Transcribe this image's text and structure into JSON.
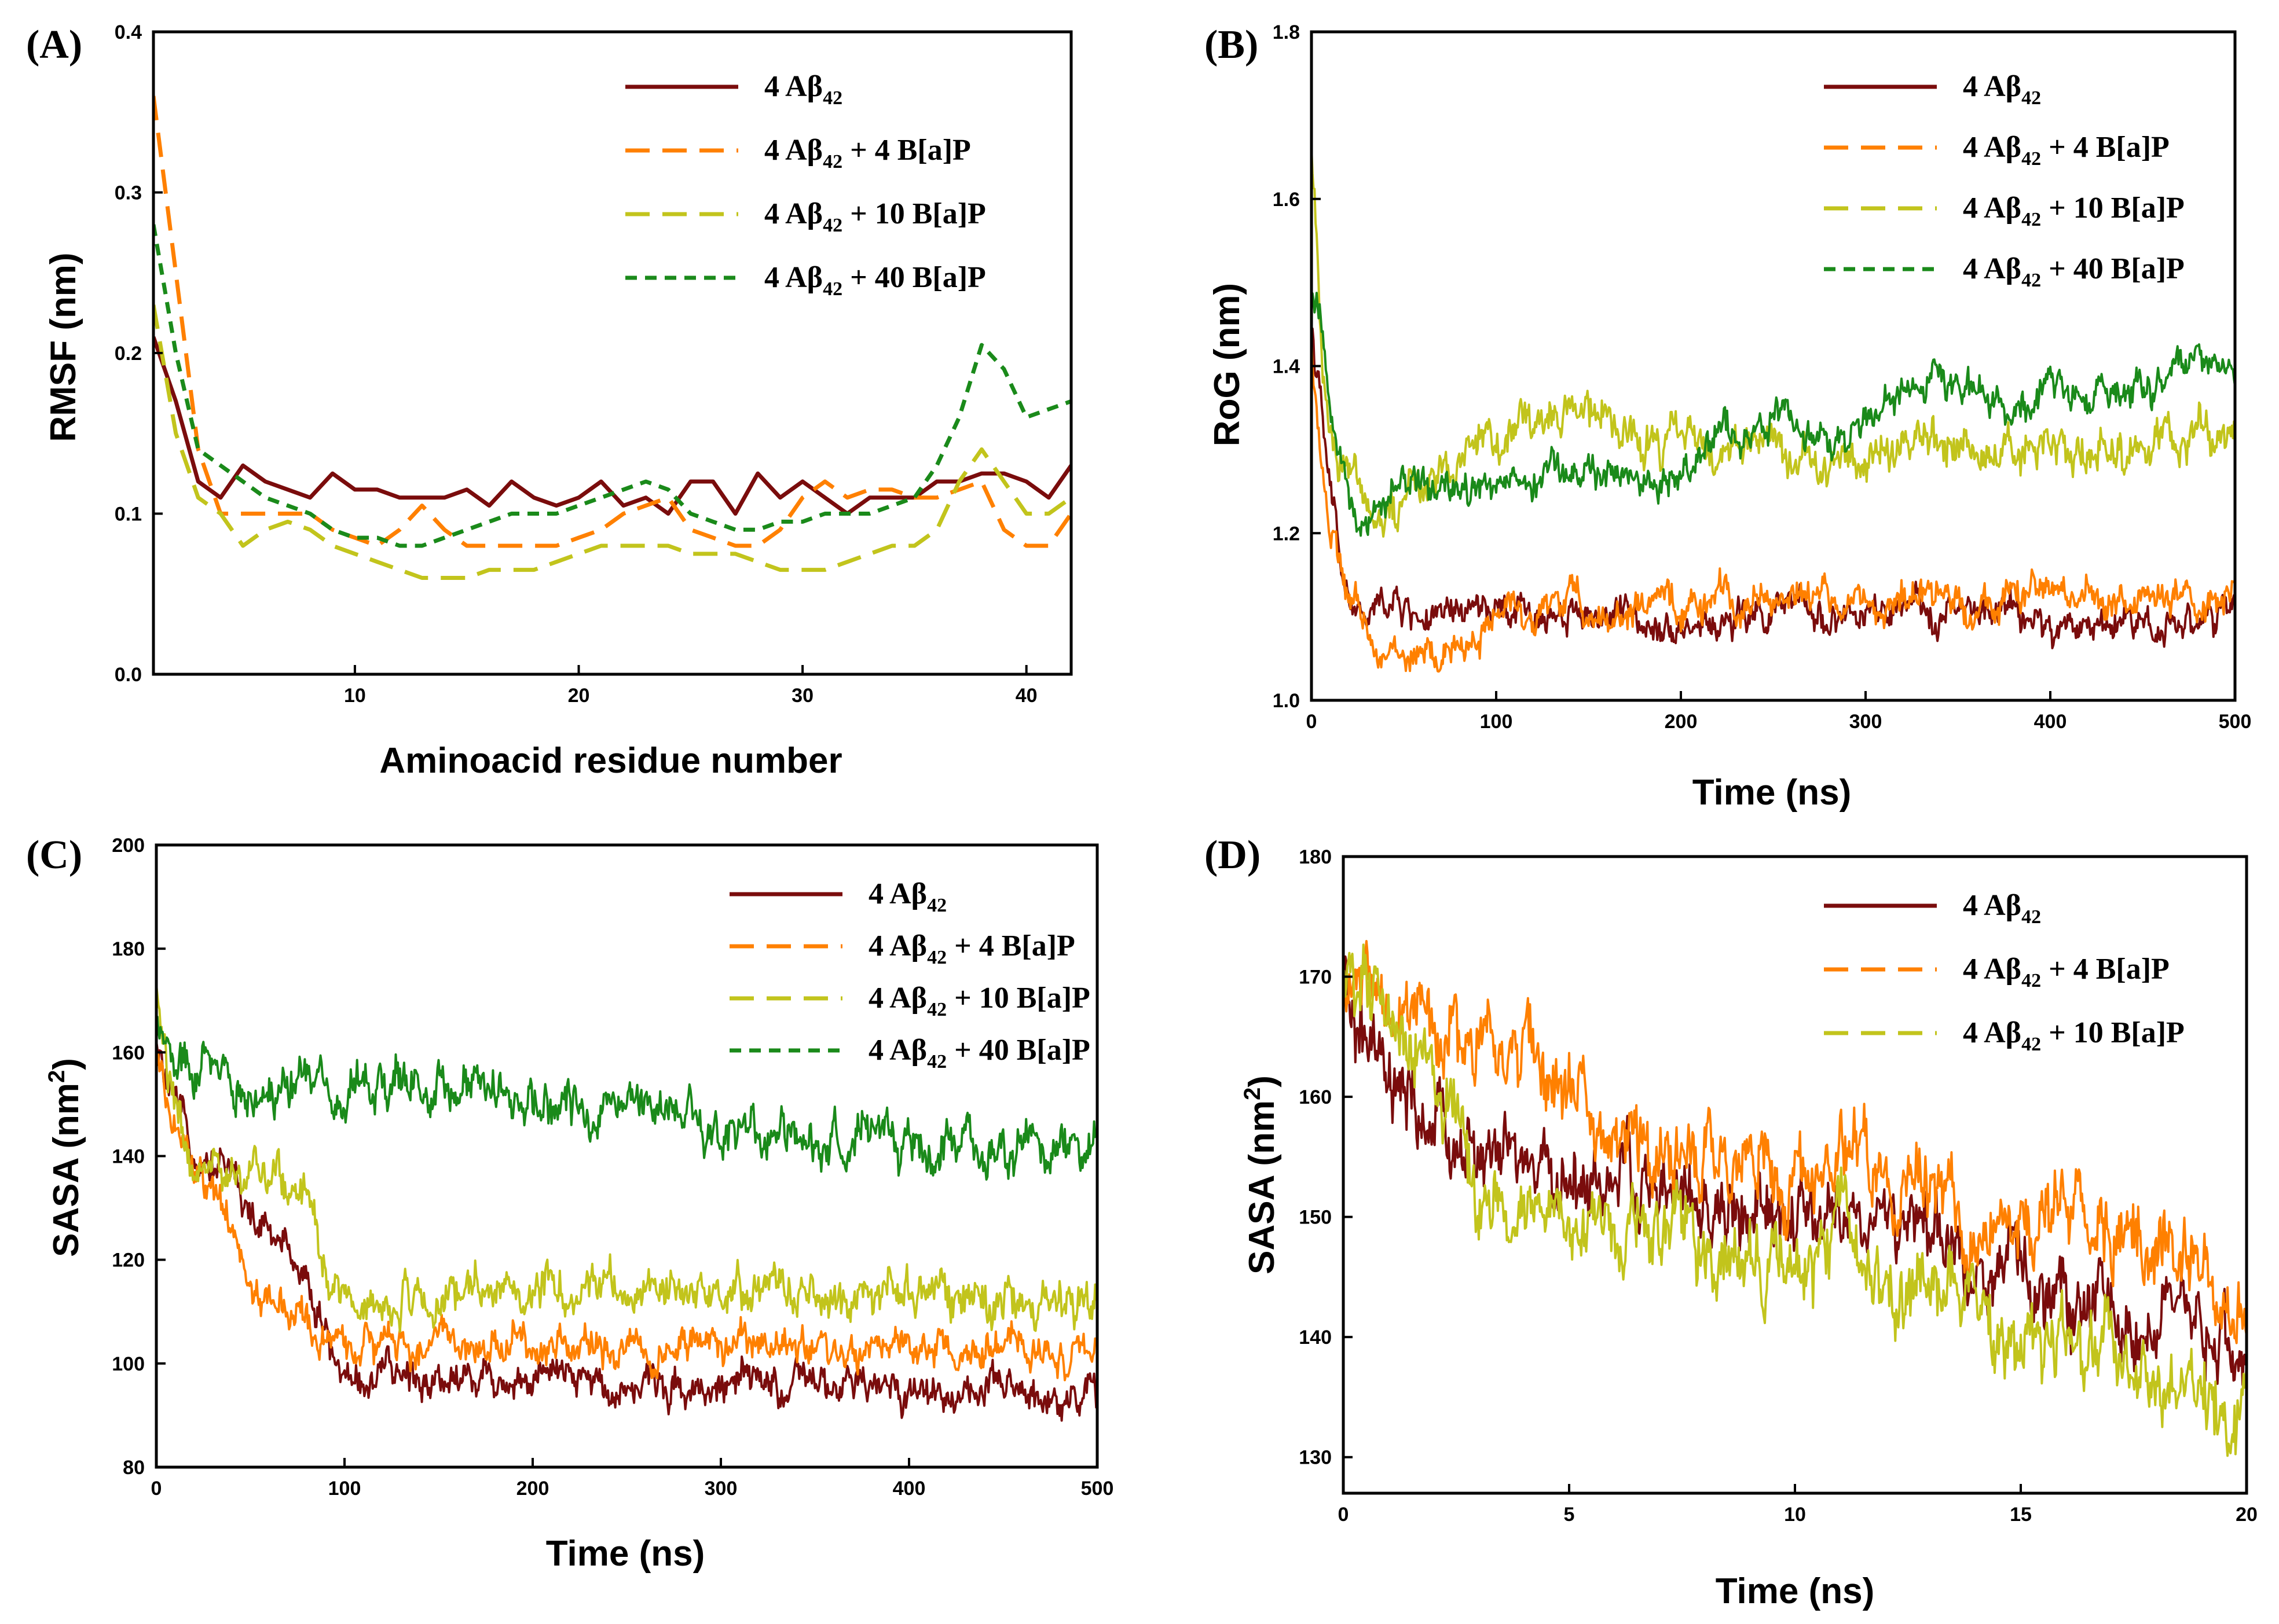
{
  "colors": {
    "abeta": "#7a0c0c",
    "bap4": "#ff8000",
    "bap10": "#c2c41c",
    "bap40": "#1a8a1a"
  },
  "chart_data": [
    {
      "panel": "(A)",
      "type": "line",
      "xlabel": "Aminoacid residue number",
      "ylabel": "RMSF (nm)",
      "xlim": [
        1,
        42
      ],
      "ylim": [
        0.0,
        0.4
      ],
      "xticks": [
        10,
        20,
        30,
        40
      ],
      "yticks": [
        0.0,
        0.1,
        0.2,
        0.3,
        0.4
      ],
      "xtick_labels": [
        "10",
        "20",
        "30",
        "40"
      ],
      "ytick_labels": [
        "0.0",
        "0.1",
        "0.2",
        "0.3",
        "0.4"
      ],
      "x": [
        1,
        2,
        3,
        4,
        5,
        6,
        7,
        8,
        9,
        10,
        11,
        12,
        13,
        14,
        15,
        16,
        17,
        18,
        19,
        20,
        21,
        22,
        23,
        24,
        25,
        26,
        27,
        28,
        29,
        30,
        31,
        32,
        33,
        34,
        35,
        36,
        37,
        38,
        39,
        40,
        41,
        42
      ],
      "series": [
        {
          "name": "4 Aβ42",
          "color_key": "abeta",
          "dash": "solid",
          "values": [
            0.21,
            0.17,
            0.12,
            0.11,
            0.13,
            0.12,
            0.115,
            0.11,
            0.125,
            0.115,
            0.115,
            0.11,
            0.11,
            0.11,
            0.115,
            0.105,
            0.12,
            0.11,
            0.105,
            0.11,
            0.12,
            0.105,
            0.11,
            0.1,
            0.12,
            0.12,
            0.1,
            0.125,
            0.11,
            0.12,
            0.11,
            0.1,
            0.11,
            0.11,
            0.11,
            0.12,
            0.12,
            0.125,
            0.125,
            0.12,
            0.11,
            0.13
          ]
        },
        {
          "name": "4 Aβ42 + 4 B[a]P",
          "color_key": "bap4",
          "dash": "long",
          "values": [
            0.36,
            0.25,
            0.14,
            0.1,
            0.1,
            0.1,
            0.1,
            0.1,
            0.09,
            0.085,
            0.08,
            0.09,
            0.105,
            0.09,
            0.08,
            0.08,
            0.08,
            0.08,
            0.08,
            0.085,
            0.09,
            0.1,
            0.105,
            0.11,
            0.09,
            0.085,
            0.08,
            0.08,
            0.09,
            0.11,
            0.12,
            0.11,
            0.115,
            0.115,
            0.11,
            0.11,
            0.115,
            0.12,
            0.09,
            0.08,
            0.08,
            0.1
          ]
        },
        {
          "name": "4 Aβ42 + 10 B[a]P",
          "color_key": "bap10",
          "dash": "long",
          "values": [
            0.23,
            0.15,
            0.11,
            0.1,
            0.08,
            0.09,
            0.095,
            0.09,
            0.08,
            0.075,
            0.07,
            0.065,
            0.06,
            0.06,
            0.06,
            0.065,
            0.065,
            0.065,
            0.07,
            0.075,
            0.08,
            0.08,
            0.08,
            0.08,
            0.075,
            0.075,
            0.075,
            0.07,
            0.065,
            0.065,
            0.065,
            0.07,
            0.075,
            0.08,
            0.08,
            0.09,
            0.12,
            0.14,
            0.12,
            0.1,
            0.1,
            0.11
          ]
        },
        {
          "name": "4 Aβ42 + 40 B[a]P",
          "color_key": "bap40",
          "dash": "short",
          "values": [
            0.28,
            0.2,
            0.14,
            0.13,
            0.12,
            0.11,
            0.105,
            0.1,
            0.09,
            0.085,
            0.085,
            0.08,
            0.08,
            0.085,
            0.09,
            0.095,
            0.1,
            0.1,
            0.1,
            0.105,
            0.11,
            0.115,
            0.12,
            0.115,
            0.1,
            0.095,
            0.09,
            0.09,
            0.095,
            0.095,
            0.1,
            0.1,
            0.1,
            0.105,
            0.11,
            0.13,
            0.16,
            0.205,
            0.19,
            0.16,
            0.165,
            0.17
          ]
        }
      ],
      "legend": [
        "4 Aβ42",
        "4 Aβ42 + 4 B[a]P",
        "4 Aβ42 + 10 B[a]P",
        "4 Aβ42 + 40 B[a]P"
      ]
    },
    {
      "panel": "(B)",
      "type": "line",
      "xlabel": "Time (ns)",
      "ylabel": "RoG (nm)",
      "xlim": [
        0,
        500
      ],
      "ylim": [
        1.0,
        1.8
      ],
      "xticks": [
        0,
        100,
        200,
        300,
        400,
        500
      ],
      "yticks": [
        1.0,
        1.2,
        1.4,
        1.6,
        1.8
      ],
      "xtick_labels": [
        "0",
        "100",
        "200",
        "300",
        "400",
        "500"
      ],
      "ytick_labels": [
        "1.0",
        "1.2",
        "1.4",
        "1.6",
        "1.8"
      ],
      "x": [
        0,
        5,
        10,
        20,
        30,
        40,
        50,
        60,
        70,
        80,
        90,
        100,
        120,
        140,
        160,
        180,
        200,
        220,
        240,
        260,
        280,
        300,
        320,
        340,
        360,
        380,
        400,
        420,
        440,
        460,
        480,
        500
      ],
      "series": [
        {
          "name": "4 Aβ42",
          "color_key": "abeta",
          "noise": 0.02,
          "values": [
            1.45,
            1.35,
            1.25,
            1.12,
            1.09,
            1.12,
            1.11,
            1.1,
            1.09,
            1.1,
            1.11,
            1.1,
            1.1,
            1.11,
            1.1,
            1.1,
            1.09,
            1.09,
            1.1,
            1.11,
            1.1,
            1.1,
            1.1,
            1.11,
            1.1,
            1.11,
            1.08,
            1.09,
            1.1,
            1.09,
            1.1,
            1.1
          ]
        },
        {
          "name": "4 Aβ42 + 4 B[a]P",
          "color_key": "bap4",
          "noise": 0.02,
          "values": [
            1.42,
            1.3,
            1.2,
            1.12,
            1.08,
            1.06,
            1.05,
            1.05,
            1.05,
            1.06,
            1.08,
            1.1,
            1.11,
            1.12,
            1.1,
            1.11,
            1.11,
            1.12,
            1.12,
            1.13,
            1.12,
            1.11,
            1.12,
            1.12,
            1.12,
            1.12,
            1.13,
            1.12,
            1.12,
            1.12,
            1.11,
            1.12
          ]
        },
        {
          "name": "4 Aβ42 + 10 B[a]P",
          "color_key": "bap10",
          "noise": 0.025,
          "values": [
            1.65,
            1.45,
            1.32,
            1.28,
            1.25,
            1.22,
            1.24,
            1.26,
            1.28,
            1.3,
            1.31,
            1.31,
            1.33,
            1.35,
            1.33,
            1.3,
            1.31,
            1.3,
            1.31,
            1.3,
            1.29,
            1.29,
            1.29,
            1.31,
            1.32,
            1.3,
            1.29,
            1.3,
            1.3,
            1.31,
            1.31,
            1.32
          ]
        },
        {
          "name": "4 Aβ42 + 40 B[a]P",
          "color_key": "bap40",
          "noise": 0.02,
          "values": [
            1.48,
            1.45,
            1.35,
            1.26,
            1.22,
            1.24,
            1.26,
            1.25,
            1.24,
            1.25,
            1.25,
            1.26,
            1.27,
            1.26,
            1.27,
            1.26,
            1.27,
            1.31,
            1.33,
            1.34,
            1.3,
            1.33,
            1.37,
            1.38,
            1.37,
            1.36,
            1.37,
            1.37,
            1.38,
            1.38,
            1.4,
            1.39
          ]
        }
      ],
      "legend": [
        "4 Aβ42",
        "4 Aβ42 + 4 B[a]P",
        "4 Aβ42 + 10 B[a]P",
        "4 Aβ42 + 40 B[a]P"
      ]
    },
    {
      "panel": "(C)",
      "type": "line",
      "xlabel": "Time (ns)",
      "ylabel": "SASA (nm",
      "ylabel_sup": "2",
      "ylabel_end": ")",
      "xlim": [
        0,
        500
      ],
      "ylim": [
        80,
        200
      ],
      "xticks": [
        0,
        100,
        200,
        300,
        400,
        500
      ],
      "yticks": [
        80,
        100,
        120,
        140,
        160,
        180,
        200
      ],
      "xtick_labels": [
        "0",
        "100",
        "200",
        "300",
        "400",
        "500"
      ],
      "ytick_labels": [
        "80",
        "100",
        "120",
        "140",
        "160",
        "180",
        "200"
      ],
      "x": [
        0,
        10,
        20,
        30,
        40,
        50,
        60,
        70,
        80,
        90,
        100,
        120,
        150,
        200,
        250,
        300,
        350,
        400,
        450,
        500
      ],
      "series": [
        {
          "name": "4 Aβ42",
          "color_key": "abeta",
          "noise": 3.5,
          "values": [
            160,
            148,
            142,
            140,
            138,
            128,
            124,
            122,
            118,
            105,
            97,
            97,
            98,
            97,
            96,
            96,
            95,
            95,
            94,
            94
          ]
        },
        {
          "name": "4 Aβ42 + 4 B[a]P",
          "color_key": "bap4",
          "noise": 3.5,
          "values": [
            158,
            145,
            138,
            132,
            125,
            115,
            112,
            110,
            108,
            104,
            103,
            103,
            104,
            104,
            103,
            103,
            103,
            102,
            102,
            102
          ]
        },
        {
          "name": "4 Aβ42 + 10 B[a]P",
          "color_key": "bap10",
          "noise": 4.0,
          "values": [
            172,
            148,
            140,
            136,
            136,
            135,
            136,
            137,
            136,
            120,
            112,
            112,
            114,
            115,
            114,
            114,
            113,
            113,
            112,
            112
          ]
        },
        {
          "name": "4 Aβ42 + 40 B[a]P",
          "color_key": "bap40",
          "noise": 4.5,
          "values": [
            165,
            158,
            155,
            155,
            154,
            154,
            155,
            155,
            155,
            154,
            154,
            154,
            154,
            152,
            150,
            146,
            143,
            142,
            142,
            141
          ]
        }
      ],
      "legend": [
        "4 Aβ42",
        "4 Aβ42 + 4 B[a]P",
        "4 Aβ42 + 10 B[a]P",
        "4 Aβ42 + 40 B[a]P"
      ]
    },
    {
      "panel": "(D)",
      "type": "line",
      "xlabel": "Time (ns)",
      "ylabel": "SASA (nm",
      "ylabel_sup": "2",
      "ylabel_end": ")",
      "xlim": [
        0,
        20
      ],
      "ylim": [
        127,
        180
      ],
      "xticks": [
        0,
        5,
        10,
        15,
        20
      ],
      "yticks": [
        130,
        140,
        150,
        160,
        170,
        180
      ],
      "xtick_labels": [
        "0",
        "5",
        "10",
        "15",
        "20"
      ],
      "ytick_labels": [
        "130",
        "140",
        "150",
        "160",
        "170",
        "180"
      ],
      "x": [
        0,
        1,
        2,
        3,
        4,
        5,
        6,
        7,
        8,
        9,
        10,
        11,
        12,
        13,
        14,
        15,
        16,
        17,
        18,
        19,
        20
      ],
      "series": [
        {
          "name": "4 Aβ42",
          "color_key": "abeta",
          "noise": 3.0,
          "values": [
            168,
            160,
            157,
            155,
            154,
            153,
            153,
            152,
            150,
            150,
            149,
            150,
            150,
            148,
            146,
            145,
            143,
            142,
            141,
            140,
            139
          ]
        },
        {
          "name": "4 Aβ42 + 4 B[a]P",
          "color_key": "bap4",
          "noise": 3.0,
          "values": [
            170,
            168,
            165,
            164,
            164,
            160,
            157,
            156,
            155,
            154,
            155,
            154,
            154,
            152,
            150,
            148,
            151,
            150,
            148,
            146,
            142
          ]
        },
        {
          "name": "4 Aβ42 + 10 B[a]P",
          "color_key": "bap10",
          "noise": 3.0,
          "values": [
            170,
            168,
            162,
            150,
            152,
            150,
            150,
            149,
            148,
            147,
            145,
            150,
            144,
            143,
            142,
            140,
            139,
            139,
            137,
            136,
            134
          ]
        }
      ],
      "legend": [
        "4 Aβ42",
        "4 Aβ42 + 4 B[a]P",
        "4 Aβ42 + 10 B[a]P"
      ]
    }
  ]
}
